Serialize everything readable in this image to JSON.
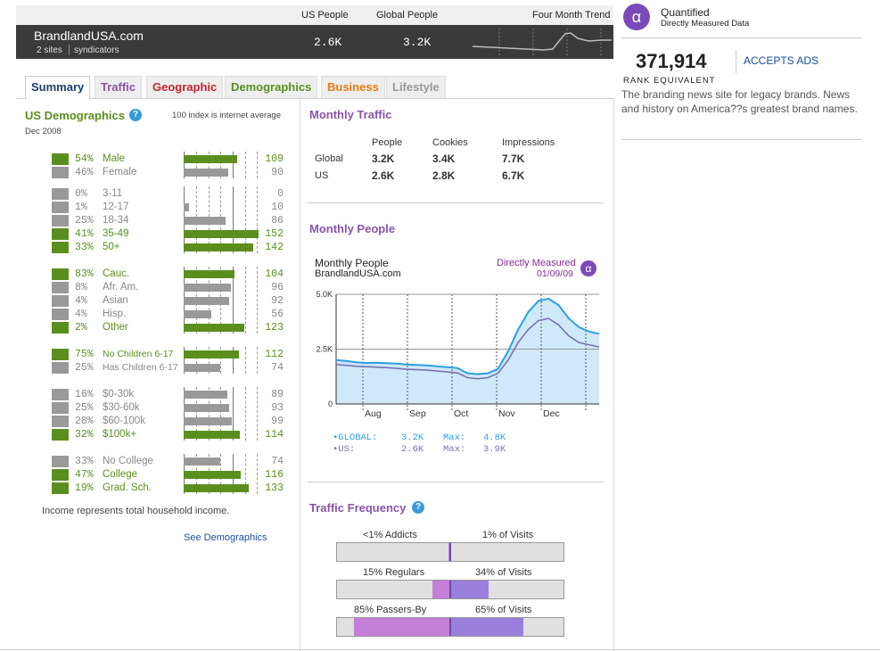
{
  "header": {
    "col_us_people": "US People",
    "col_global_people": "Global People",
    "col_trend": "Four Month Trend",
    "site_name": "BrandlandUSA.com",
    "site_sub_a": "2 sites",
    "site_sub_b": "syndicators",
    "us_people": "2.6K",
    "global_people": "3.2K"
  },
  "tabs": [
    {
      "label": "Summary",
      "color": "#1a3b6b"
    },
    {
      "label": "Traffic",
      "color": "#8a55a8"
    },
    {
      "label": "Geographic",
      "color": "#c0272d"
    },
    {
      "label": "Demographics",
      "color": "#5a8f1f"
    },
    {
      "label": "Business",
      "color": "#e87e12"
    },
    {
      "label": "Lifestyle",
      "color": "#999999"
    }
  ],
  "demographics": {
    "title": "US Demographics",
    "help": "?",
    "note": "100 index is internet average",
    "date": "Dec 2008",
    "groups": [
      [
        {
          "pct": "54%",
          "label": "Male",
          "index": "109",
          "hl": true
        },
        {
          "pct": "46%",
          "label": "Female",
          "index": "90",
          "hl": false
        }
      ],
      [
        {
          "pct": "0%",
          "label": "3-11",
          "index": "0",
          "hl": false
        },
        {
          "pct": "1%",
          "label": "12-17",
          "index": "10",
          "hl": false
        },
        {
          "pct": "25%",
          "label": "18-34",
          "index": "86",
          "hl": false
        },
        {
          "pct": "41%",
          "label": "35-49",
          "index": "152",
          "hl": true
        },
        {
          "pct": "33%",
          "label": "50+",
          "index": "142",
          "hl": true
        }
      ],
      [
        {
          "pct": "83%",
          "label": "Cauc.",
          "index": "104",
          "hl": true
        },
        {
          "pct": "8%",
          "label": "Afr. Am.",
          "index": "96",
          "hl": false
        },
        {
          "pct": "4%",
          "label": "Asian",
          "index": "92",
          "hl": false
        },
        {
          "pct": "4%",
          "label": "Hisp.",
          "index": "56",
          "hl": false
        },
        {
          "pct": "2%",
          "label": "Other",
          "index": "123",
          "hl": true
        }
      ],
      [
        {
          "pct": "75%",
          "label": "No Children 6-17",
          "index": "112",
          "hl": true
        },
        {
          "pct": "25%",
          "label": "Has Children 6-17",
          "index": "74",
          "hl": false
        }
      ],
      [
        {
          "pct": "16%",
          "label": "$0-30k",
          "index": "89",
          "hl": false
        },
        {
          "pct": "25%",
          "label": "$30-60k",
          "index": "93",
          "hl": false
        },
        {
          "pct": "28%",
          "label": "$60-100k",
          "index": "99",
          "hl": false
        },
        {
          "pct": "32%",
          "label": "$100k+",
          "index": "114",
          "hl": true
        }
      ],
      [
        {
          "pct": "33%",
          "label": "No College",
          "index": "74",
          "hl": false
        },
        {
          "pct": "47%",
          "label": "College",
          "index": "116",
          "hl": true
        },
        {
          "pct": "19%",
          "label": "Grad. Sch.",
          "index": "133",
          "hl": true
        }
      ]
    ],
    "footnote": "Income represents total household income.",
    "link": "See Demographics"
  },
  "monthly_traffic": {
    "title": "Monthly Traffic",
    "columns": [
      "People",
      "Cookies",
      "Impressions"
    ],
    "rows": [
      {
        "label": "Global",
        "values": [
          "3.2K",
          "3.4K",
          "7.7K"
        ]
      },
      {
        "label": "US",
        "values": [
          "2.6K",
          "2.8K",
          "6.7K"
        ]
      }
    ]
  },
  "monthly_people": {
    "title": "Monthly People",
    "chart_title": "Monthly People",
    "chart_site": "BrandlandUSA.com",
    "measured": "Directly Measured",
    "date": "01/09/09",
    "legend": [
      {
        "label": "•GLOBAL:",
        "value": "3.2K",
        "max_label": "Max:",
        "max": "4.8K",
        "color": "#2aa0e0"
      },
      {
        "label": "•US:",
        "value": "2.6K",
        "max_label": "Max:",
        "max": "3.9K",
        "color": "#7a72b0"
      }
    ]
  },
  "chart_data": {
    "type": "area",
    "x_ticks": [
      "Aug",
      "Sep",
      "Oct",
      "Nov",
      "Dec"
    ],
    "y_ticks": [
      "5.0K",
      "2.5K",
      "0"
    ],
    "ylim": [
      0,
      5000
    ],
    "series": [
      {
        "name": "GLOBAL",
        "color": "#2aa0e0",
        "values": [
          2000,
          1960,
          1900,
          1870,
          1880,
          1860,
          1840,
          1800,
          1780,
          1760,
          1720,
          1680,
          1640,
          1400,
          1360,
          1400,
          1600,
          2400,
          3400,
          4200,
          4700,
          4800,
          4500,
          3900,
          3500,
          3300,
          3200
        ]
      },
      {
        "name": "US",
        "color": "#7a72b0",
        "values": [
          1800,
          1760,
          1720,
          1700,
          1680,
          1660,
          1620,
          1580,
          1560,
          1540,
          1500,
          1460,
          1420,
          1200,
          1150,
          1200,
          1400,
          2000,
          2800,
          3400,
          3800,
          3900,
          3600,
          3100,
          2800,
          2700,
          2600
        ]
      }
    ]
  },
  "traffic_frequency": {
    "title": "Traffic Frequency",
    "help": "?",
    "bars": [
      {
        "left": "<1% Addicts",
        "right": "1% of Visits",
        "people_pct": 1,
        "visits_pct": 1
      },
      {
        "left": "15% Regulars",
        "right": "34% of Visits",
        "people_pct": 15,
        "visits_pct": 34
      },
      {
        "left": "85% Passers-By",
        "right": "65% of Visits",
        "people_pct": 85,
        "visits_pct": 65
      }
    ]
  },
  "sidebar": {
    "brand": "Quantified",
    "brand_sub": "Directly Measured Data",
    "logo_glyph": "α",
    "rank": "371,914",
    "rank_label": "RANK EQUIVALENT",
    "accepts_ads": "ACCEPTS ADS",
    "description": "The branding news site for legacy brands. News and history on America??s greatest brand names."
  }
}
